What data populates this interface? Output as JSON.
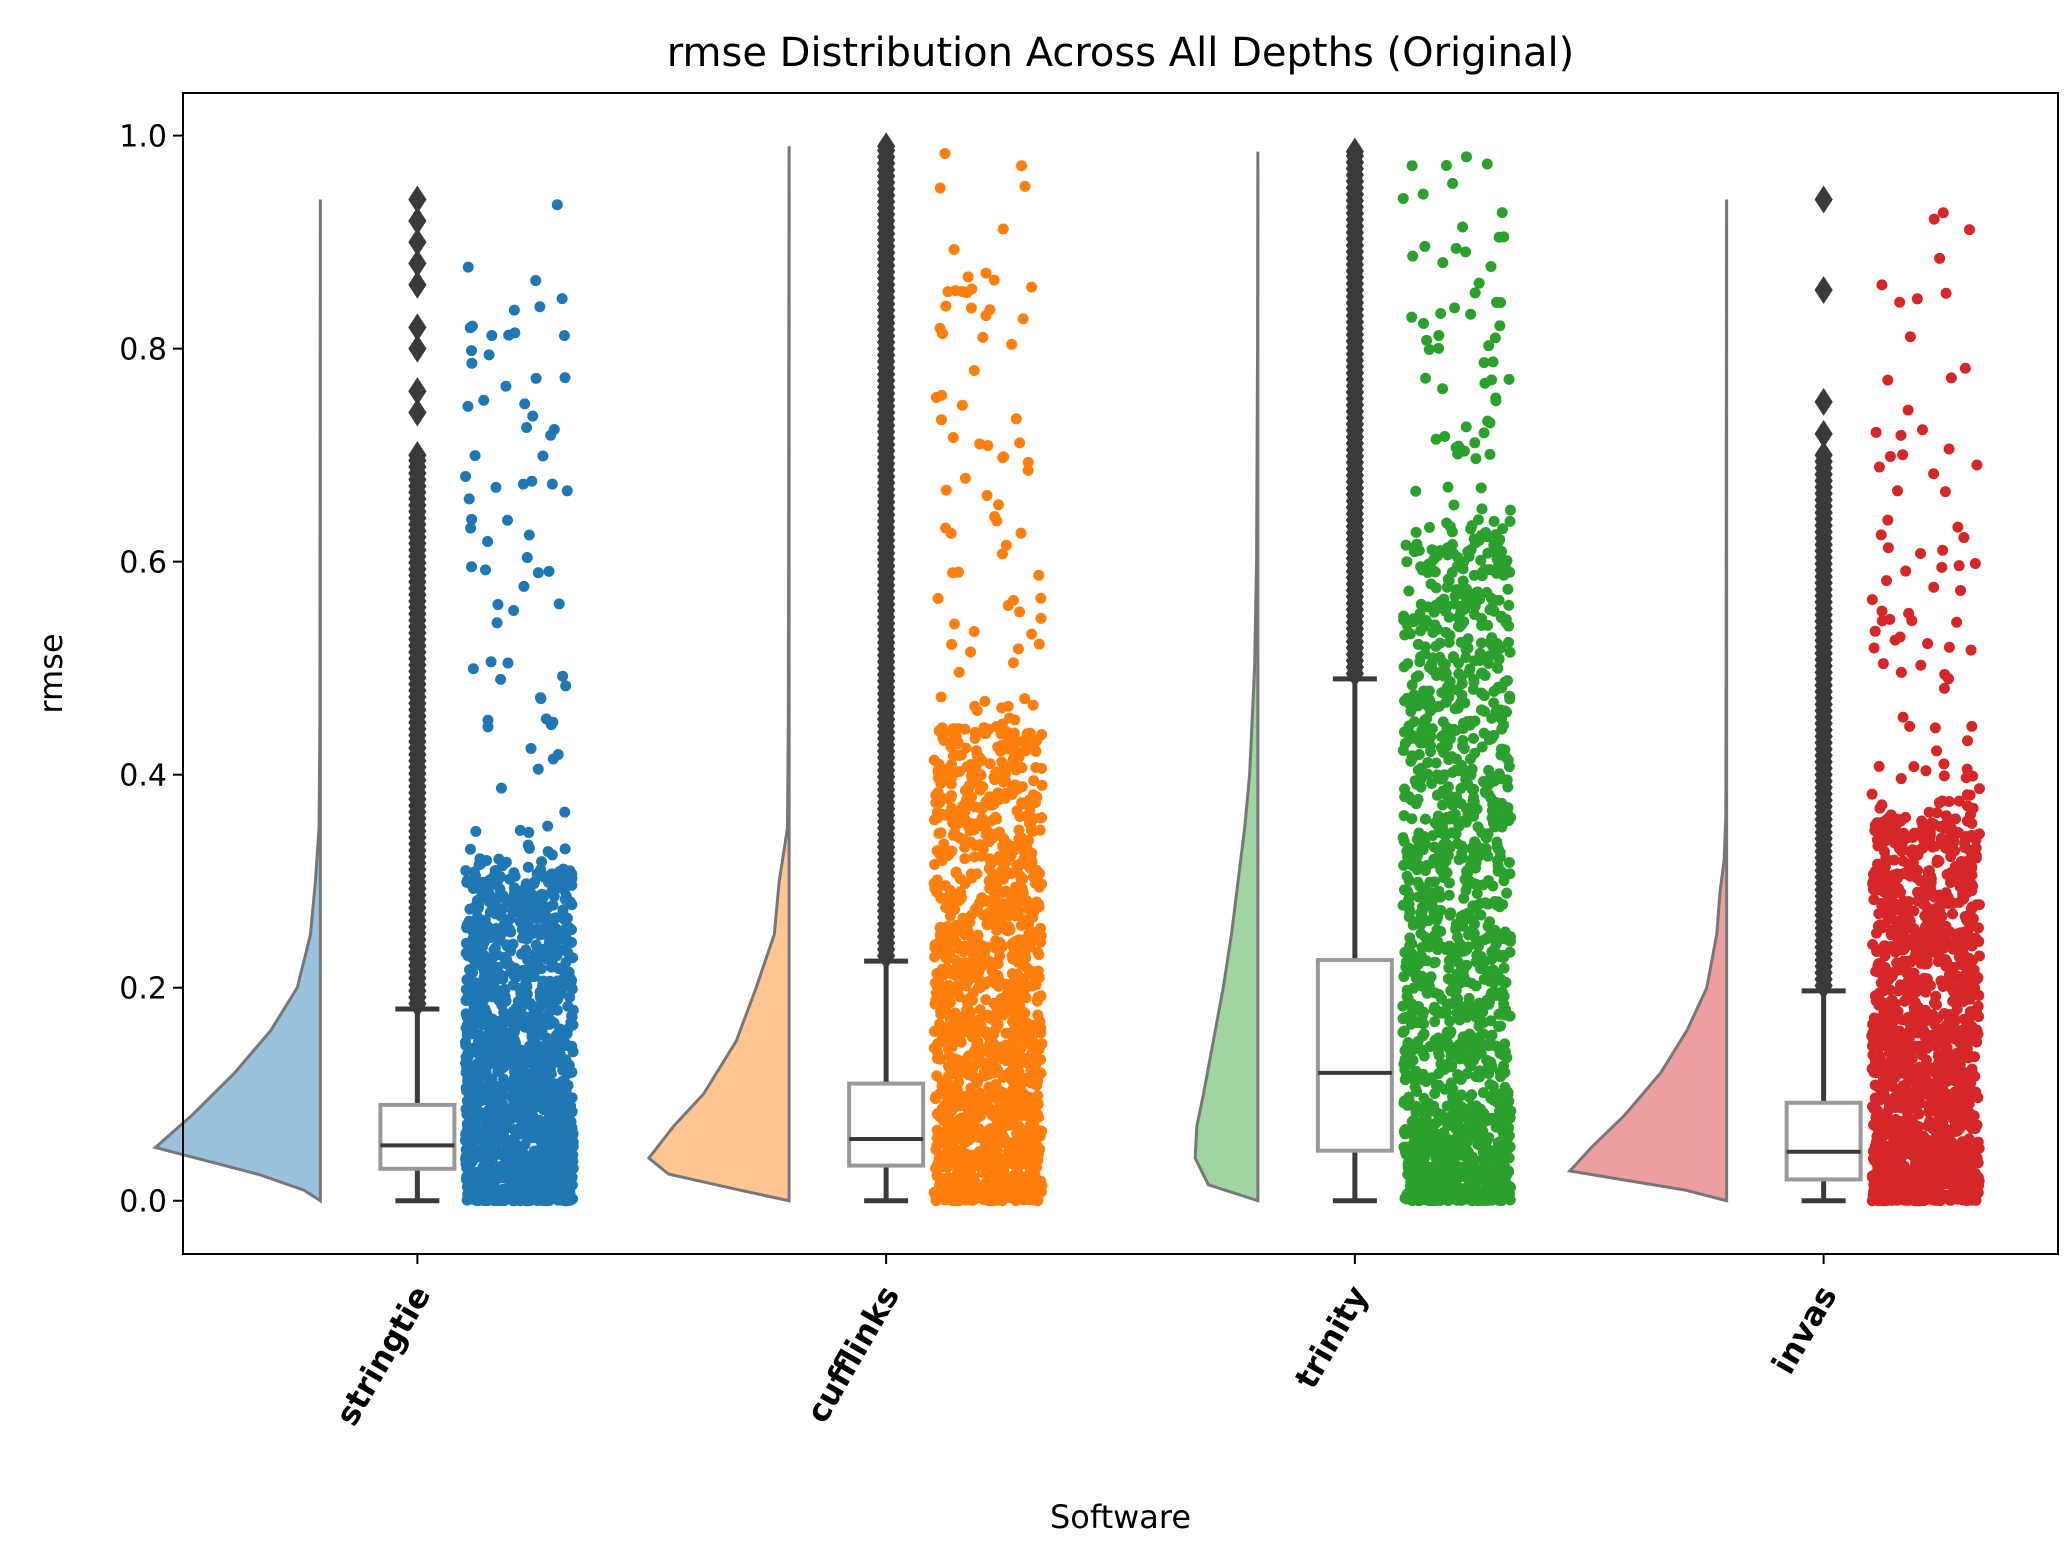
{
  "chart_data": {
    "type": "raincloud",
    "title": "rmse Distribution Across All Depths (Original)",
    "xlabel": "Software",
    "ylabel": "rmse",
    "ylim": [
      -0.05,
      1.04
    ],
    "yticks": [
      0.0,
      0.2,
      0.4,
      0.6,
      0.8,
      1.0
    ],
    "ytick_labels": [
      "0.0",
      "0.2",
      "0.4",
      "0.6",
      "0.8",
      "1.0"
    ],
    "categories": [
      "stringtie",
      "cufflinks",
      "trinity",
      "invas"
    ],
    "grid": false,
    "legend": "none",
    "series": [
      {
        "category": "stringtie",
        "color": "#1f77b4",
        "box": {
          "q1": 0.03,
          "median": 0.052,
          "q3": 0.09,
          "whisker_low": 0.0,
          "whisker_high": 0.18
        },
        "max": 0.94,
        "dense_upper": 0.31,
        "outlier_markers": [
          0.86,
          0.88,
          0.9,
          0.92,
          0.94,
          0.8,
          0.82,
          0.74,
          0.76,
          0.7
        ],
        "violin": [
          [
            0.0,
            0.0
          ],
          [
            0.01,
            0.1
          ],
          [
            0.025,
            0.38
          ],
          [
            0.05,
            1.0
          ],
          [
            0.08,
            0.78
          ],
          [
            0.12,
            0.52
          ],
          [
            0.16,
            0.3
          ],
          [
            0.2,
            0.14
          ],
          [
            0.25,
            0.06
          ],
          [
            0.3,
            0.03
          ],
          [
            0.35,
            0.008
          ],
          [
            0.45,
            0.003
          ],
          [
            0.6,
            0.002
          ],
          [
            0.8,
            0.001
          ],
          [
            0.94,
            0.0
          ]
        ]
      },
      {
        "category": "cufflinks",
        "color": "#ff7f0e",
        "box": {
          "q1": 0.033,
          "median": 0.058,
          "q3": 0.11,
          "whisker_low": 0.0,
          "whisker_high": 0.225
        },
        "max": 0.99,
        "dense_upper": 0.44,
        "outlier_markers": [
          0.99
        ],
        "violin": [
          [
            0.0,
            0.0
          ],
          [
            0.01,
            0.3
          ],
          [
            0.025,
            0.73
          ],
          [
            0.04,
            0.85
          ],
          [
            0.07,
            0.7
          ],
          [
            0.1,
            0.52
          ],
          [
            0.15,
            0.32
          ],
          [
            0.2,
            0.2
          ],
          [
            0.25,
            0.09
          ],
          [
            0.3,
            0.06
          ],
          [
            0.35,
            0.01
          ],
          [
            0.45,
            0.005
          ],
          [
            0.6,
            0.003
          ],
          [
            0.8,
            0.002
          ],
          [
            0.99,
            0.0
          ]
        ]
      },
      {
        "category": "trinity",
        "color": "#2ca02c",
        "box": {
          "q1": 0.047,
          "median": 0.12,
          "q3": 0.226,
          "whisker_low": 0.0,
          "whisker_high": 0.49
        },
        "max": 0.985,
        "dense_upper": 0.61,
        "outlier_markers": [
          0.985
        ],
        "violin": [
          [
            0.0,
            0.0
          ],
          [
            0.015,
            0.3
          ],
          [
            0.04,
            0.38
          ],
          [
            0.07,
            0.37
          ],
          [
            0.1,
            0.33
          ],
          [
            0.15,
            0.27
          ],
          [
            0.2,
            0.21
          ],
          [
            0.25,
            0.16
          ],
          [
            0.3,
            0.12
          ],
          [
            0.35,
            0.08
          ],
          [
            0.4,
            0.05
          ],
          [
            0.5,
            0.02
          ],
          [
            0.6,
            0.008
          ],
          [
            0.8,
            0.002
          ],
          [
            0.985,
            0.0
          ]
        ]
      },
      {
        "category": "invas",
        "color": "#d62728",
        "box": {
          "q1": 0.02,
          "median": 0.046,
          "q3": 0.092,
          "whisker_low": 0.0,
          "whisker_high": 0.197
        },
        "max": 0.94,
        "dense_upper": 0.36,
        "outlier_markers": [
          0.94,
          0.855,
          0.75,
          0.72,
          0.7
        ],
        "violin": [
          [
            0.0,
            0.0
          ],
          [
            0.01,
            0.25
          ],
          [
            0.028,
            0.95
          ],
          [
            0.05,
            0.82
          ],
          [
            0.08,
            0.62
          ],
          [
            0.12,
            0.4
          ],
          [
            0.16,
            0.24
          ],
          [
            0.2,
            0.12
          ],
          [
            0.25,
            0.06
          ],
          [
            0.29,
            0.04
          ],
          [
            0.32,
            0.015
          ],
          [
            0.36,
            0.005
          ],
          [
            0.5,
            0.003
          ],
          [
            0.7,
            0.002
          ],
          [
            0.94,
            0.0
          ]
        ]
      }
    ]
  }
}
